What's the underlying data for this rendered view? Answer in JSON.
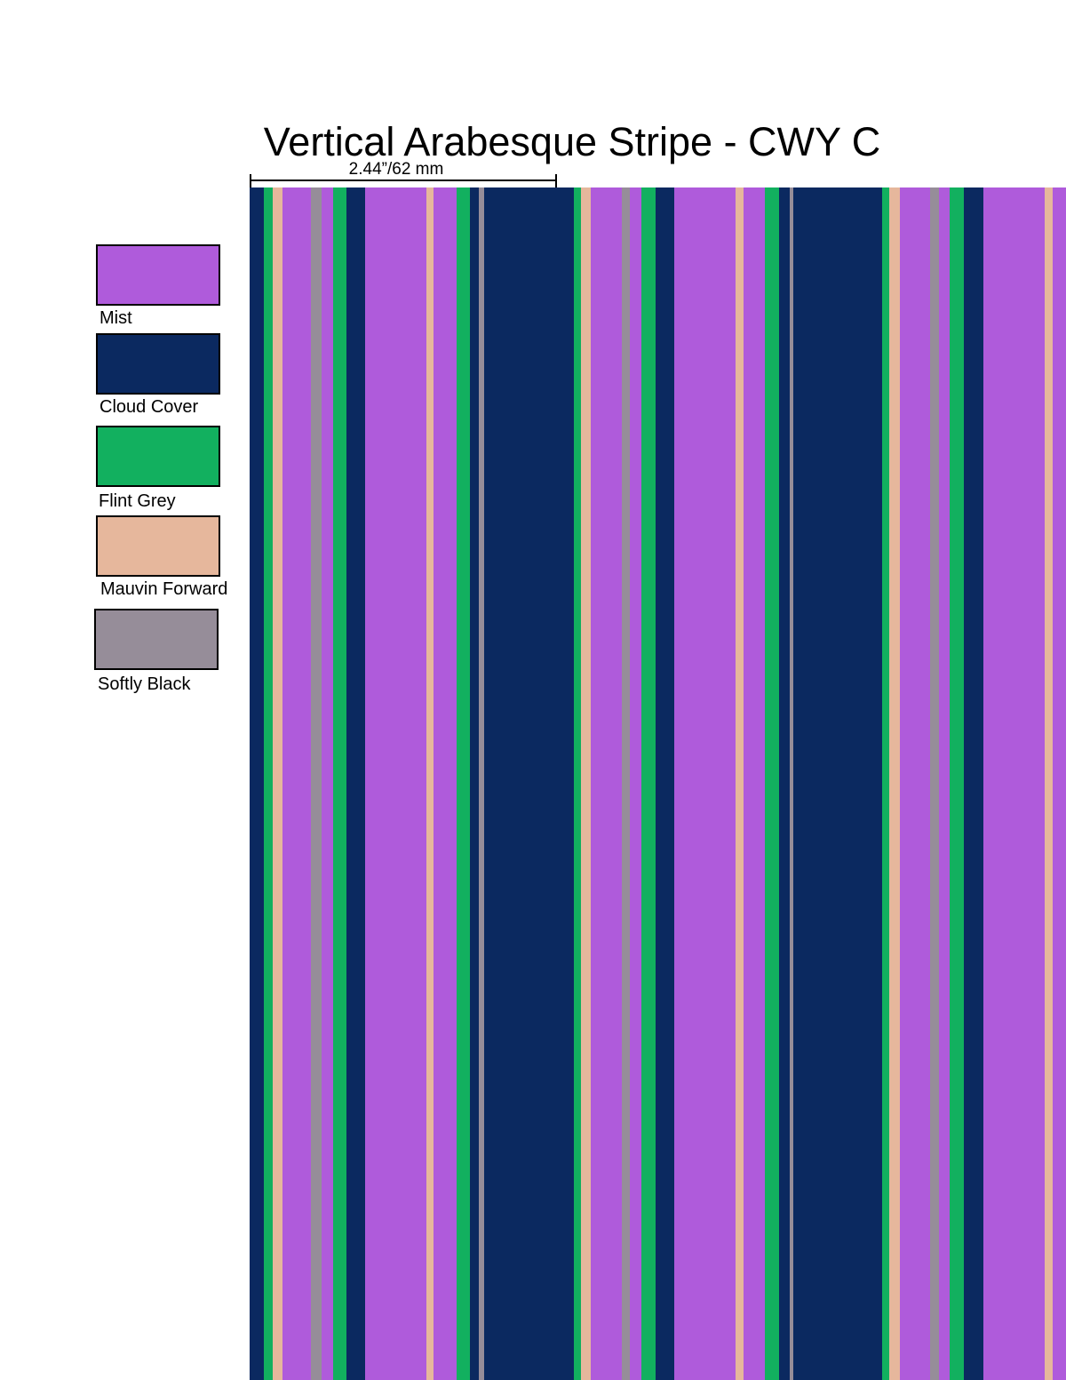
{
  "title": "Vertical Arabesque Stripe - CWY C",
  "repeat_label": "2.44”/62 mm",
  "colorways": [
    {
      "name": "Mist",
      "color": "#AF5BDB"
    },
    {
      "name": "Cloud Cover",
      "color": "#0B2960"
    },
    {
      "name": "Flint Grey",
      "color": "#12B05F"
    },
    {
      "name": "Mauvin Forward",
      "color": "#E6B79C"
    },
    {
      "name": "Softly Black",
      "color": "#968D99"
    }
  ]
}
